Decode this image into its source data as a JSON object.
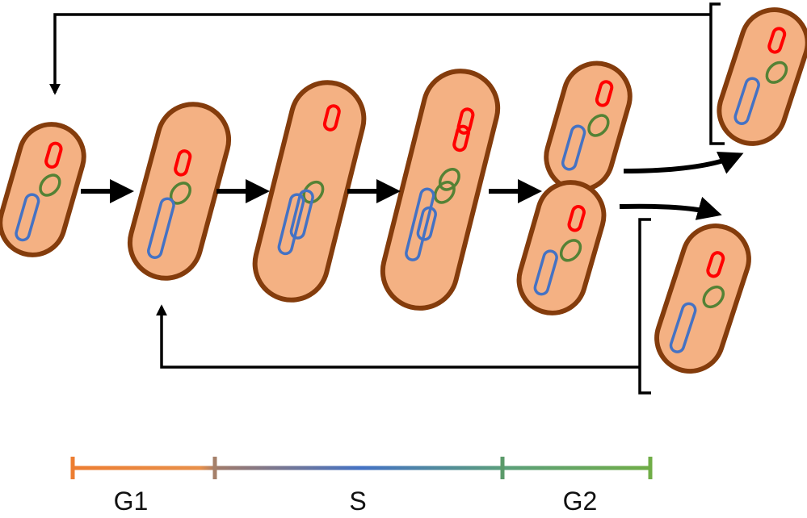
{
  "phases": [
    {
      "label": "G1"
    },
    {
      "label": "S"
    },
    {
      "label": "G2"
    }
  ]
}
